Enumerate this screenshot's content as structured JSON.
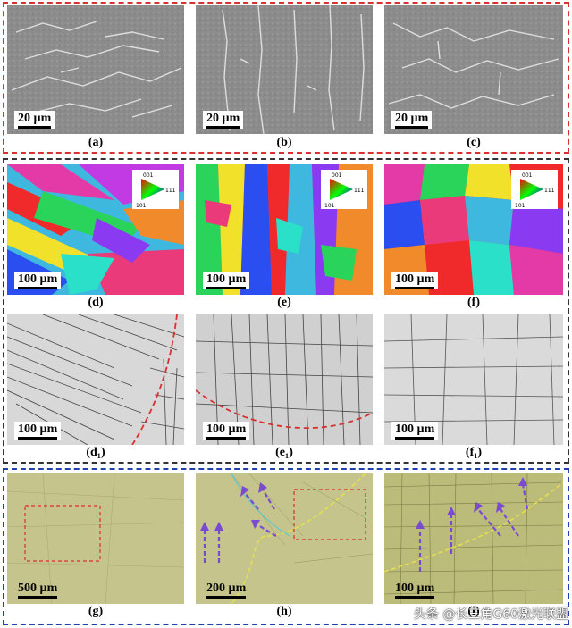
{
  "figure": {
    "group_colors": {
      "top": "#d93030",
      "middle": "#333333",
      "bottom": "#2040b0"
    },
    "panels": [
      {
        "id": "a",
        "label": "(a)",
        "scale": "20 µm",
        "kind": "sem"
      },
      {
        "id": "b",
        "label": "(b)",
        "scale": "20 µm",
        "kind": "sem"
      },
      {
        "id": "c",
        "label": "(c)",
        "scale": "20 µm",
        "kind": "sem"
      },
      {
        "id": "d",
        "label": "(d)",
        "scale": "100 µm",
        "kind": "ebsd"
      },
      {
        "id": "e",
        "label": "(e)",
        "scale": "100 µm",
        "kind": "ebsd"
      },
      {
        "id": "f",
        "label": "(f)",
        "scale": "100 µm",
        "kind": "ebsd"
      },
      {
        "id": "d1",
        "label": "(d₁)",
        "scale": "100 µm",
        "kind": "gb"
      },
      {
        "id": "e1",
        "label": "(e₁)",
        "scale": "100 µm",
        "kind": "gb"
      },
      {
        "id": "f1",
        "label": "(f₁)",
        "scale": "100 µm",
        "kind": "gb"
      },
      {
        "id": "g",
        "label": "(g)",
        "scale": "500 µm",
        "kind": "optical"
      },
      {
        "id": "h",
        "label": "(h)",
        "scale": "200 µm",
        "kind": "optical"
      },
      {
        "id": "i",
        "label": "(i)",
        "scale": "100 µm",
        "kind": "optical"
      }
    ],
    "ipf_legend": {
      "top": "001",
      "right": "111",
      "bottom_left": "101"
    },
    "watermark": "头条 @长三角G60激光联盟"
  }
}
